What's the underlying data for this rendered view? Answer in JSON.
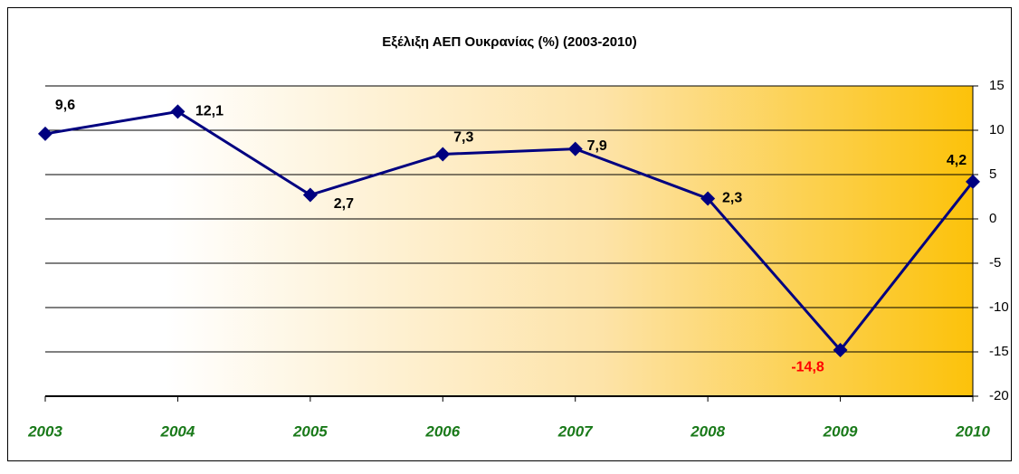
{
  "chart_data": {
    "type": "line",
    "title": "Εξέλιξη ΑΕΠ Ουκρανίας (%) (2003-2010)",
    "categories": [
      "2003",
      "2004",
      "2005",
      "2006",
      "2007",
      "2008",
      "2009",
      "2010"
    ],
    "values": [
      9.6,
      12.1,
      2.7,
      7.3,
      7.9,
      2.3,
      -14.8,
      4.2
    ],
    "value_labels": [
      "9,6",
      "12,1",
      "2,7",
      "7,3",
      "7,9",
      "2,3",
      "-14,8",
      "4,2"
    ],
    "value_label_colors": [
      "#000000",
      "#000000",
      "#000000",
      "#000000",
      "#000000",
      "#000000",
      "#ff0000",
      "#000000"
    ],
    "color": "#000080",
    "category_color": "#1a7a1a",
    "ylim": [
      -20,
      15
    ],
    "yticks": [
      15,
      10,
      5,
      0,
      -5,
      -10,
      -15,
      -20
    ],
    "grid": true,
    "y_axis_side": "right"
  }
}
